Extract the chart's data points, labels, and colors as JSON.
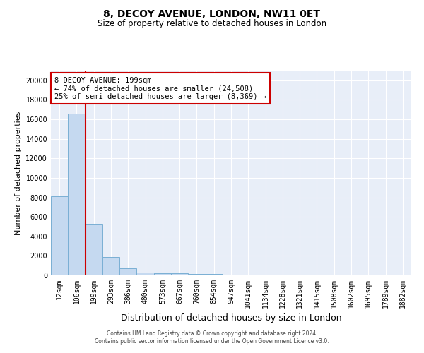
{
  "title": "8, DECOY AVENUE, LONDON, NW11 0ET",
  "subtitle": "Size of property relative to detached houses in London",
  "xlabel": "Distribution of detached houses by size in London",
  "ylabel": "Number of detached properties",
  "categories": [
    "12sqm",
    "106sqm",
    "199sqm",
    "293sqm",
    "386sqm",
    "480sqm",
    "573sqm",
    "667sqm",
    "760sqm",
    "854sqm",
    "947sqm",
    "1041sqm",
    "1134sqm",
    "1228sqm",
    "1321sqm",
    "1415sqm",
    "1508sqm",
    "1602sqm",
    "1695sqm",
    "1789sqm",
    "1882sqm"
  ],
  "values": [
    8100,
    16600,
    5300,
    1850,
    700,
    320,
    230,
    200,
    180,
    150,
    0,
    0,
    0,
    0,
    0,
    0,
    0,
    0,
    0,
    0,
    0
  ],
  "bar_color": "#c5d9f0",
  "bar_edge_color": "#7aafd4",
  "highlight_line_index": 2,
  "highlight_color": "#cc0000",
  "annotation_text": "8 DECOY AVENUE: 199sqm\n← 74% of detached houses are smaller (24,508)\n25% of semi-detached houses are larger (8,369) →",
  "annotation_box_color": "#ffffff",
  "annotation_box_edge": "#cc0000",
  "ylim": [
    0,
    21000
  ],
  "yticks": [
    0,
    2000,
    4000,
    6000,
    8000,
    10000,
    12000,
    14000,
    16000,
    18000,
    20000
  ],
  "background_color": "#e8eef8",
  "grid_color": "#ffffff",
  "footer_text": "Contains HM Land Registry data © Crown copyright and database right 2024.\nContains public sector information licensed under the Open Government Licence v3.0.",
  "title_fontsize": 10,
  "subtitle_fontsize": 8.5,
  "ylabel_fontsize": 8,
  "xlabel_fontsize": 9,
  "tick_fontsize": 7,
  "ann_fontsize": 7.5
}
